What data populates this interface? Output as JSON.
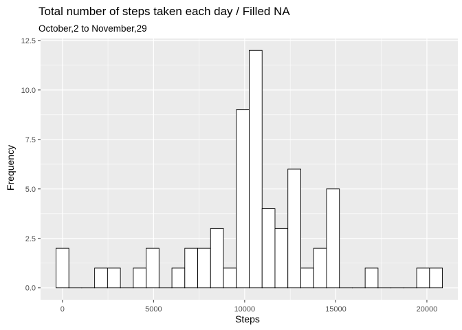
{
  "chart_data": {
    "type": "bar",
    "title": "Total number of steps taken each day / Filled NA",
    "subtitle": "October,2 to November,29",
    "xlabel": "Steps",
    "ylabel": "Frequency",
    "bin_width": 706.8,
    "bins": [
      {
        "x_min": -353,
        "x_max": 353,
        "count": 2
      },
      {
        "x_min": 353,
        "x_max": 1060,
        "count": 0
      },
      {
        "x_min": 1060,
        "x_max": 1767,
        "count": 0
      },
      {
        "x_min": 1767,
        "x_max": 2474,
        "count": 1
      },
      {
        "x_min": 2474,
        "x_max": 3181,
        "count": 1
      },
      {
        "x_min": 3181,
        "x_max": 3888,
        "count": 0
      },
      {
        "x_min": 3888,
        "x_max": 4595,
        "count": 1
      },
      {
        "x_min": 4595,
        "x_max": 5302,
        "count": 2
      },
      {
        "x_min": 5302,
        "x_max": 6009,
        "count": 0
      },
      {
        "x_min": 6009,
        "x_max": 6715,
        "count": 1
      },
      {
        "x_min": 6715,
        "x_max": 7422,
        "count": 2
      },
      {
        "x_min": 7422,
        "x_max": 8129,
        "count": 2
      },
      {
        "x_min": 8129,
        "x_max": 8836,
        "count": 3
      },
      {
        "x_min": 8836,
        "x_max": 9543,
        "count": 1
      },
      {
        "x_min": 9543,
        "x_max": 10250,
        "count": 9
      },
      {
        "x_min": 10250,
        "x_max": 10957,
        "count": 12
      },
      {
        "x_min": 10957,
        "x_max": 11664,
        "count": 4
      },
      {
        "x_min": 11664,
        "x_max": 12371,
        "count": 3
      },
      {
        "x_min": 12371,
        "x_max": 13078,
        "count": 6
      },
      {
        "x_min": 13078,
        "x_max": 13785,
        "count": 1
      },
      {
        "x_min": 13785,
        "x_max": 14492,
        "count": 2
      },
      {
        "x_min": 14492,
        "x_max": 15199,
        "count": 5
      },
      {
        "x_min": 15199,
        "x_max": 15906,
        "count": 0
      },
      {
        "x_min": 15906,
        "x_max": 16612,
        "count": 0
      },
      {
        "x_min": 16612,
        "x_max": 17319,
        "count": 1
      },
      {
        "x_min": 17319,
        "x_max": 18026,
        "count": 0
      },
      {
        "x_min": 18026,
        "x_max": 18733,
        "count": 0
      },
      {
        "x_min": 18733,
        "x_max": 19440,
        "count": 0
      },
      {
        "x_min": 19440,
        "x_max": 20147,
        "count": 1
      },
      {
        "x_min": 20147,
        "x_max": 20854,
        "count": 1
      }
    ],
    "xlim": [
      -1200,
      21700
    ],
    "ylim": [
      -0.6,
      12.6
    ],
    "x_ticks": [
      0,
      5000,
      10000,
      15000,
      20000
    ],
    "x_tick_labels": [
      "0",
      "5000",
      "10000",
      "15000",
      "20000"
    ],
    "y_ticks": [
      0,
      2.5,
      5,
      7.5,
      10,
      12.5
    ],
    "y_tick_labels": [
      "0.0",
      "2.5",
      "5.0",
      "7.5",
      "10.0",
      "12.5"
    ],
    "grid": true,
    "bar_fill": "#ffffff",
    "bar_stroke": "#000000",
    "panel_background": "#ebebeb",
    "grid_color": "#ffffff"
  }
}
